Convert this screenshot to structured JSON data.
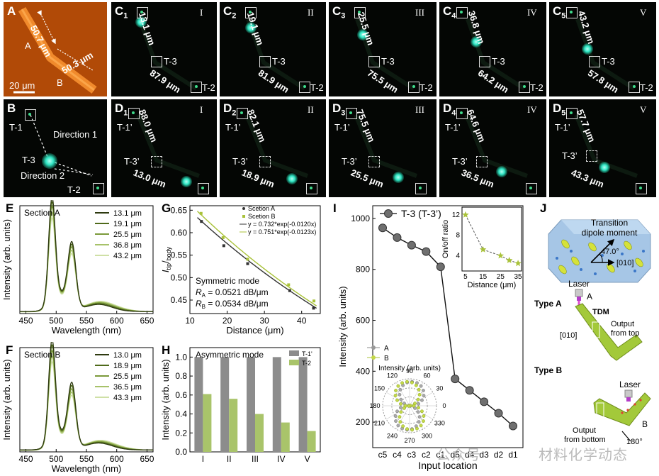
{
  "panel_A": {
    "letter": "A",
    "length_A": "50.7 μm",
    "length_B": "50.3 μm",
    "seg_A": "A",
    "seg_B": "B",
    "scale": "20 μm"
  },
  "panels_C": [
    {
      "letter": "C",
      "sub": "1",
      "roman": "I",
      "top": "13.1 μm",
      "bottom": "87.9 μm",
      "t3": "T-3",
      "t2": "T-2"
    },
    {
      "letter": "C",
      "sub": "2",
      "roman": "II",
      "top": "19.1 μm",
      "bottom": "81.9 μm",
      "t3": "T-3",
      "t2": "T-2"
    },
    {
      "letter": "C",
      "sub": "3",
      "roman": "III",
      "top": "25.5 μm",
      "bottom": "75.5 μm",
      "t3": "T-3",
      "t2": "T-2"
    },
    {
      "letter": "C",
      "sub": "4",
      "roman": "IV",
      "top": "36.8 μm",
      "bottom": "64.2 μm",
      "t3": "T-3",
      "t2": "T-2"
    },
    {
      "letter": "C",
      "sub": "5",
      "roman": "V",
      "top": "43.2 μm",
      "bottom": "57.8 μm",
      "t3": "T-3",
      "t2": "T-2"
    }
  ],
  "panel_B": {
    "letter": "B",
    "t1": "T-1",
    "t3": "T-3",
    "t2": "T-2",
    "dir1": "Direction 1",
    "dir2": "Direction 2"
  },
  "panels_D": [
    {
      "letter": "D",
      "sub": "1",
      "roman": "I",
      "top": "88.0 μm",
      "bottom": "13.0 μm",
      "t1": "T-1’",
      "t3": "T-3’",
      "t2": "T-2"
    },
    {
      "letter": "D",
      "sub": "2",
      "roman": "II",
      "top": "82.1 μm",
      "bottom": "18.9 μm",
      "t1": "T-1’",
      "t3": "T-3’",
      "t2": "T-2"
    },
    {
      "letter": "D",
      "sub": "3",
      "roman": "III",
      "top": "75.5 μm",
      "bottom": "25.5 μm",
      "t1": "T-1’",
      "t3": "T-3’",
      "t2": "T-2"
    },
    {
      "letter": "D",
      "sub": "4",
      "roman": "IV",
      "top": "64.6 μm",
      "bottom": "36.5 μm",
      "t1": "T-1’",
      "t3": "T-3’",
      "t2": "T-2"
    },
    {
      "letter": "D",
      "sub": "5",
      "roman": "V",
      "top": "57.7 μm",
      "bottom": "43.3 μm",
      "t1": "T-1’",
      "t3": "T-3’",
      "t2": "T-2"
    }
  ],
  "chart_data": [
    {
      "id": "E",
      "type": "line",
      "section": "Section A",
      "xlabel": "Wavelength (nm)",
      "ylabel": "Intensity (arb. units)",
      "xticks": [
        450,
        500,
        550,
        600,
        650
      ],
      "xlim": [
        440,
        660
      ],
      "colors": [
        "#2e3a10",
        "#4f6a1a",
        "#7b9a3a",
        "#a7c26a",
        "#cfe0a6"
      ],
      "legend": [
        "13.1 μm",
        "19.1 μm",
        "25.5 μm",
        "36.8 μm",
        "43.2 μm"
      ],
      "peak_rel": [
        1.0,
        0.96,
        0.92,
        0.87,
        0.82
      ]
    },
    {
      "id": "F",
      "type": "line",
      "section": "Section B",
      "xlabel": "Wavelength (nm)",
      "ylabel": "Intensity (arb. units)",
      "xticks": [
        450,
        500,
        550,
        600,
        650
      ],
      "xlim": [
        440,
        660
      ],
      "colors": [
        "#2e3a10",
        "#4f6a1a",
        "#7b9a3a",
        "#a7c26a",
        "#cfe0a6"
      ],
      "legend": [
        "13.0 μm",
        "18.9 μm",
        "25.5 μm",
        "36.5 μm",
        "43.3 μm"
      ],
      "peak_rel": [
        1.0,
        0.95,
        0.9,
        0.85,
        0.8
      ]
    },
    {
      "id": "G",
      "type": "scatter",
      "title": "Symmetric mode",
      "xlabel": "Distance (μm)",
      "ylabel_main": "I",
      "ylabel_sub1": "tip",
      "ylabel_sep": "/",
      "ylabel_sub2": "body",
      "xlim": [
        10,
        45
      ],
      "ylim": [
        0.42,
        0.66
      ],
      "xticks": [
        10,
        20,
        30,
        40
      ],
      "yticks": [
        0.45,
        0.5,
        0.55,
        0.6,
        0.65
      ],
      "series": [
        {
          "name": "Scetion A",
          "color": "#333333",
          "x": [
            13.1,
            19.1,
            25.5,
            36.8,
            43.2
          ],
          "y": [
            0.625,
            0.571,
            0.531,
            0.471,
            0.432
          ],
          "fit": "y = 0.732*exp(-0.0120x)",
          "a": 0.732,
          "b": 0.012
        },
        {
          "name": "Scetion B",
          "color": "#a9c23a",
          "x": [
            13.0,
            18.9,
            25.5,
            36.5,
            43.3
          ],
          "y": [
            0.643,
            0.589,
            0.541,
            0.484,
            0.448
          ],
          "fit": "y = 0.751*exp(-0.0123x)",
          "a": 0.751,
          "b": 0.0123
        }
      ],
      "ra_label": "R",
      "ra_sub": "A",
      "ra_val": " = 0.0521 dB/μm",
      "rb_label": "R",
      "rb_sub": "B",
      "rb_val": " = 0.0534 dB/μm"
    },
    {
      "id": "H",
      "type": "bar",
      "title": "Asymmetric mode",
      "ylabel": "Intensity (arb. units)",
      "categories": [
        "I",
        "II",
        "III",
        "IV",
        "V"
      ],
      "ylim": [
        0,
        1.1
      ],
      "yticks": [
        0.0,
        0.2,
        0.4,
        0.6,
        0.8,
        1.0
      ],
      "series": [
        {
          "name": "T-1'",
          "color": "#8c8c8c",
          "values": [
            1.0,
            1.0,
            1.0,
            1.0,
            1.0
          ]
        },
        {
          "name": "T-2",
          "color": "#a9c46a",
          "values": [
            0.61,
            0.56,
            0.4,
            0.31,
            0.22
          ]
        }
      ]
    },
    {
      "id": "I",
      "type": "line",
      "legend": "T-3 (T-3’)",
      "xlabel": "Input location",
      "ylabel": "Intensity (arb. units)",
      "categories": [
        "c5",
        "c4",
        "c3",
        "c2",
        "c1",
        "d5",
        "d4",
        "d3",
        "d2",
        "d1"
      ],
      "values": [
        963,
        925,
        895,
        870,
        810,
        370,
        325,
        280,
        235,
        185
      ],
      "ylim": [
        100,
        1050
      ],
      "yticks": [
        200,
        400,
        600,
        800,
        1000
      ],
      "inset": {
        "xlabel": "Distance (μm)",
        "ylabel": "On/off ratio",
        "x": [
          5,
          15,
          25,
          30,
          35
        ],
        "y": [
          12,
          5.2,
          4.0,
          3.1,
          2.5
        ],
        "xticks": [
          5,
          15,
          25,
          35
        ],
        "yticks": [
          4,
          8,
          12
        ],
        "xlim": [
          3,
          37
        ],
        "ylim": [
          1,
          13.5
        ]
      },
      "polar": {
        "title": "Intensity (arb. units)",
        "series": [
          "A",
          "B"
        ],
        "angles": [
          "0",
          "30",
          "60",
          "90",
          "120",
          "150",
          "180",
          "210",
          "240",
          "270",
          "300",
          "330"
        ]
      }
    }
  ],
  "panel_J": {
    "letter": "J",
    "tdm1": "Transition",
    "tdm2": "dipole moment",
    "angle": "47.0°",
    "dir": "[010]",
    "laser": "Laser",
    "typeA": "Type A",
    "tdm": "TDM",
    "outA1": "Output",
    "outA2": "from top",
    "dirA": "[010]",
    "typeB": "Type B",
    "outB1": "Output",
    "outB2": "from bottom",
    "rot": "180°",
    "segA": "A",
    "segB": "B"
  },
  "watermark": {
    "left": "公众号",
    "right": "材料化学动态"
  }
}
